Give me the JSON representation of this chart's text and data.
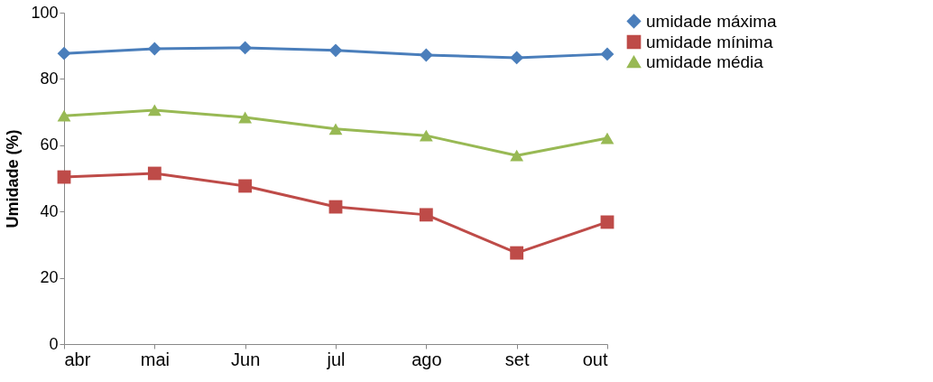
{
  "chart_data": {
    "type": "line",
    "ylabel": "Umidade (%)",
    "categories": [
      "abr",
      "mai",
      "Jun",
      "jul",
      "ago",
      "set",
      "out"
    ],
    "series": [
      {
        "name": "umidade máxima",
        "color": "#4a7ebb",
        "marker": "diamond",
        "values": [
          87.7,
          89.1,
          89.4,
          88.6,
          87.2,
          86.4,
          87.5
        ]
      },
      {
        "name": "umidade mínima",
        "color": "#be4b48",
        "marker": "square",
        "values": [
          50.4,
          51.5,
          47.7,
          41.4,
          39.0,
          27.5,
          36.8
        ]
      },
      {
        "name": "umidade média",
        "color": "#98b954",
        "marker": "triangle",
        "values": [
          68.9,
          70.6,
          68.4,
          64.9,
          62.9,
          56.9,
          62.1
        ]
      }
    ],
    "ylim": [
      0,
      100
    ],
    "yticks": [
      0,
      20,
      40,
      60,
      80,
      100
    ],
    "grid": false,
    "legend": "right",
    "line_style": "solid"
  }
}
